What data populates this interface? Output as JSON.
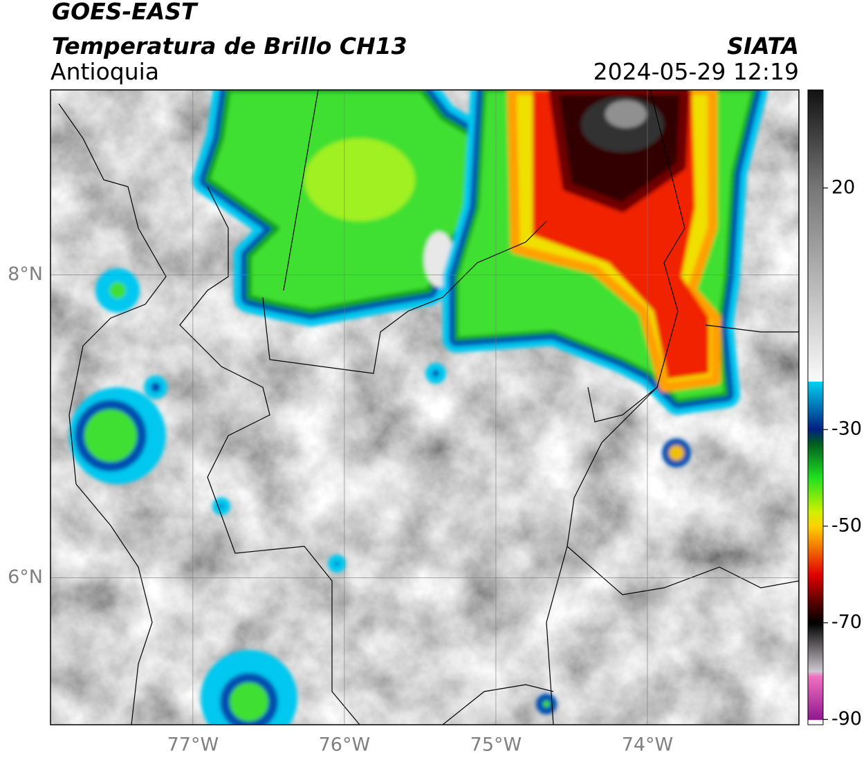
{
  "header": {
    "satellite": "GOES-EAST",
    "product": "Temperatura de Brillo CH13",
    "region": "Antioquia",
    "source": "SIATA",
    "datetime": "2024-05-29 12:19"
  },
  "map": {
    "xlim": [
      -77.94,
      -73.0
    ],
    "ylim": [
      5.03,
      9.22
    ],
    "xticks": [
      {
        "value": -77,
        "label": "77°W"
      },
      {
        "value": -76,
        "label": "76°W"
      },
      {
        "value": -75,
        "label": "75°W"
      },
      {
        "value": -74,
        "label": "74°W"
      }
    ],
    "yticks": [
      {
        "value": 6,
        "label": "6°N"
      },
      {
        "value": 8,
        "label": "8°N"
      }
    ]
  },
  "colorbar": {
    "lim": [
      -91.1,
      40.3
    ],
    "ticks": [
      20,
      -30,
      -50,
      -70,
      -90
    ]
  }
}
